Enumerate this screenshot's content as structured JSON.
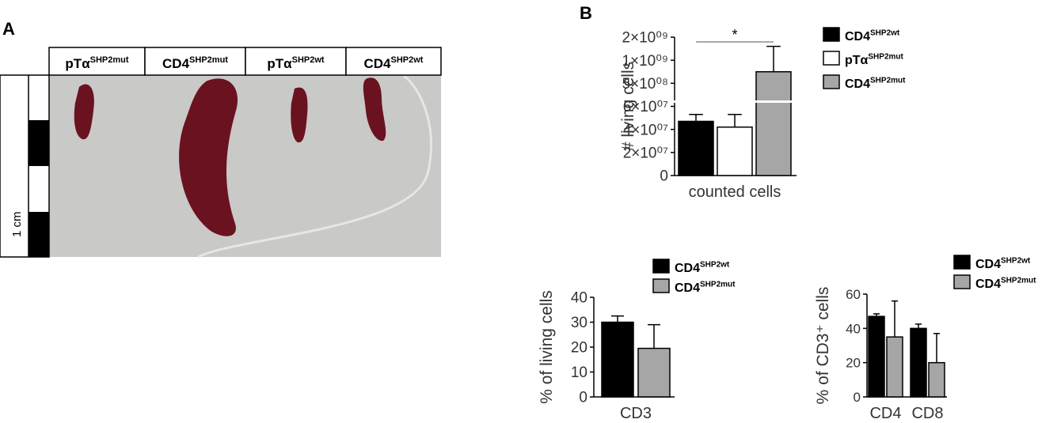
{
  "figure": {
    "panel_a": {
      "label": "A",
      "columns": [
        {
          "name": "pTα",
          "superscript": "SHP2mut"
        },
        {
          "name": "CD4",
          "superscript": "SHP2mut"
        },
        {
          "name": "pTα",
          "superscript": "SHP2wt"
        },
        {
          "name": "CD4",
          "superscript": "SHP2wt"
        }
      ],
      "scale_label": "1 cm"
    },
    "panel_b": {
      "label": "B"
    }
  },
  "chart_data": [
    {
      "type": "bar",
      "y_label": "# living cells",
      "categories": [
        "counted cells"
      ],
      "series": [
        {
          "name": "CD4",
          "superscript": "SHP2wt",
          "color": "#000000",
          "values": [
            47000000
          ],
          "errors": [
            6000000
          ]
        },
        {
          "name": "pTα",
          "superscript": "SHP2mut",
          "color": "#ffffff",
          "values": [
            42000000
          ],
          "errors": [
            11000000
          ]
        },
        {
          "name": "CD4",
          "superscript": "SHP2mut",
          "color": "#a6a6a6",
          "values": [
            750000000
          ],
          "errors": [
            850000000
          ]
        }
      ],
      "ylim": [
        0,
        2000000000
      ],
      "yscale": "broken",
      "ybreak": 60000000,
      "yticks": [
        0,
        {
          "value": 20000000,
          "label": "2×10⁰⁷"
        },
        {
          "value": 40000000,
          "label": "4×10⁰⁷"
        },
        {
          "value": 60000000,
          "label": "6×10⁰⁷"
        },
        {
          "value": 500000000,
          "label": "5×10⁰⁸"
        },
        {
          "value": 1000000000,
          "label": "1×10⁰⁹"
        },
        {
          "value": 2000000000,
          "label": "2×10⁰⁹"
        }
      ],
      "annotation": "*"
    },
    {
      "type": "bar",
      "y_label": "% of living cells",
      "categories": [
        "CD3"
      ],
      "series": [
        {
          "name": "CD4",
          "superscript": "SHP2wt",
          "color": "#000000",
          "values": [
            30
          ],
          "errors": [
            2.5
          ]
        },
        {
          "name": "CD4",
          "superscript": "SHP2mut",
          "color": "#a6a6a6",
          "values": [
            19.5
          ],
          "errors": [
            9.5
          ]
        }
      ],
      "ylim": [
        0,
        40
      ],
      "yticks": [
        0,
        10,
        20,
        30,
        40
      ]
    },
    {
      "type": "bar",
      "y_label": "% of CD3⁺ cells",
      "categories": [
        "CD4",
        "CD8"
      ],
      "series": [
        {
          "name": "CD4",
          "superscript": "SHP2wt",
          "color": "#000000",
          "values": [
            47,
            40
          ],
          "errors": [
            1.5,
            2.5
          ]
        },
        {
          "name": "CD4",
          "superscript": "SHP2mut",
          "color": "#a6a6a6",
          "values": [
            35,
            20
          ],
          "errors": [
            21,
            17
          ]
        }
      ],
      "ylim": [
        0,
        60
      ],
      "yticks": [
        0,
        20,
        40,
        60
      ]
    }
  ]
}
